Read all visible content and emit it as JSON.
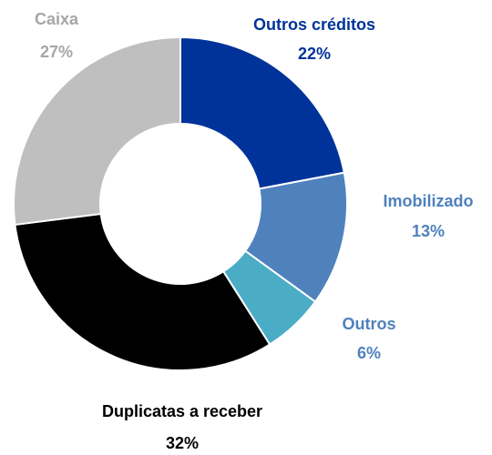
{
  "chart_data": {
    "type": "pie",
    "donut": true,
    "categories": [
      "Outros créditos",
      "Imobilizado",
      "Outros",
      "Duplicatas a receber",
      "Caixa"
    ],
    "values": [
      22,
      13,
      6,
      32,
      27
    ],
    "value_labels": [
      "22%",
      "13%",
      "6%",
      "32%",
      "27%"
    ],
    "colors": [
      "#003399",
      "#4f81bd",
      "#4bacc6",
      "#000000",
      "#bfbfbf"
    ],
    "label_colors": [
      "#003399",
      "#4f81bd",
      "#4f81bd",
      "#000000",
      "#a6a6a6"
    ]
  }
}
